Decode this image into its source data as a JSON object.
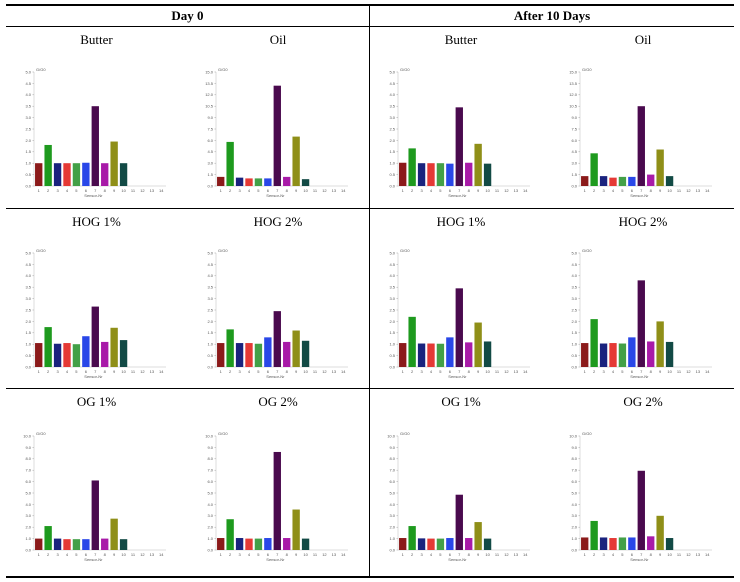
{
  "headers": [
    "Day 0",
    "After 10 Days"
  ],
  "row_labels": [
    [
      "Butter",
      "Oil",
      "Butter",
      "Oil"
    ],
    [
      "HOG 1%",
      "HOG 2%",
      "HOG 1%",
      "HOG 2%"
    ],
    [
      "OG 1%",
      "OG 2%",
      "OG 1%",
      "OG 2%"
    ]
  ],
  "colors": [
    "#8b1a1a",
    "#1e9a1e",
    "#1a237e",
    "#e53935",
    "#43a047",
    "#2947e8",
    "#4a0a4e",
    "#a81aa8",
    "#8f8f18",
    "#124a45",
    "#888888",
    "#888888",
    "#888888",
    "#888888"
  ],
  "chart_data": [
    {
      "type": "bar",
      "panel": "Day 0 / Butter",
      "ylabel": "G/G0",
      "xlabel": "Sensor-Nr",
      "categories": [
        "1",
        "2",
        "3",
        "4",
        "5",
        "6",
        "7",
        "8",
        "9",
        "10",
        "11",
        "12",
        "13",
        "14"
      ],
      "yticks": [
        "0.0",
        "0.5",
        "1.0",
        "1.5",
        "2.0",
        "2.5",
        "3.0",
        "3.5",
        "4.0",
        "4.5",
        "5.0"
      ],
      "ylim": [
        0,
        5
      ],
      "values": [
        1.0,
        1.8,
        1.0,
        1.0,
        1.0,
        1.02,
        3.5,
        1.0,
        1.95,
        1.0,
        0,
        0,
        0,
        0
      ]
    },
    {
      "type": "bar",
      "panel": "Day 0 / Oil",
      "ylabel": "G/G0",
      "xlabel": "Sensor-Nr",
      "categories": [
        "1",
        "2",
        "3",
        "4",
        "5",
        "6",
        "7",
        "8",
        "9",
        "10",
        "11",
        "12",
        "13",
        "14"
      ],
      "yticks": [
        "0.0",
        "1.5",
        "3.0",
        "4.5",
        "6.0",
        "7.5",
        "9.0",
        "10.5",
        "12.0",
        "13.5",
        "15.0"
      ],
      "ylim": [
        0,
        15
      ],
      "values": [
        1.2,
        5.8,
        1.1,
        1.0,
        1.0,
        1.0,
        13.2,
        1.2,
        6.5,
        0.9,
        0,
        0,
        0,
        0
      ]
    },
    {
      "type": "bar",
      "panel": "After 10 Days / Butter",
      "ylabel": "G/G0",
      "xlabel": "Sensor-Nr",
      "categories": [
        "1",
        "2",
        "3",
        "4",
        "5",
        "6",
        "7",
        "8",
        "9",
        "10",
        "11",
        "12",
        "13",
        "14"
      ],
      "yticks": [
        "0.0",
        "0.5",
        "1.0",
        "1.5",
        "2.0",
        "2.5",
        "3.0",
        "3.5",
        "4.0",
        "4.5",
        "5.0"
      ],
      "ylim": [
        0,
        5
      ],
      "values": [
        1.02,
        1.65,
        1.0,
        1.0,
        1.0,
        0.98,
        3.45,
        1.02,
        1.85,
        0.98,
        0,
        0,
        0,
        0
      ]
    },
    {
      "type": "bar",
      "panel": "After 10 Days / Oil",
      "ylabel": "G/G0",
      "xlabel": "Sensor-Nr",
      "categories": [
        "1",
        "2",
        "3",
        "4",
        "5",
        "6",
        "7",
        "8",
        "9",
        "10",
        "11",
        "12",
        "13",
        "14"
      ],
      "yticks": [
        "0.0",
        "1.5",
        "3.0",
        "4.5",
        "6.0",
        "7.5",
        "9.0",
        "10.5",
        "12.0",
        "13.5",
        "15.0"
      ],
      "ylim": [
        0,
        15
      ],
      "values": [
        1.3,
        4.3,
        1.3,
        1.1,
        1.2,
        1.2,
        10.5,
        1.5,
        4.8,
        1.3,
        0,
        0,
        0,
        0
      ]
    },
    {
      "type": "bar",
      "panel": "Day 0 / HOG 1%",
      "ylabel": "G/G0",
      "xlabel": "Sensor-Nr",
      "categories": [
        "1",
        "2",
        "3",
        "4",
        "5",
        "6",
        "7",
        "8",
        "9",
        "10",
        "11",
        "12",
        "13",
        "14"
      ],
      "yticks": [
        "0.0",
        "0.5",
        "1.0",
        "1.5",
        "2.0",
        "2.5",
        "3.0",
        "3.5",
        "4.0",
        "4.5",
        "5.0"
      ],
      "ylim": [
        0,
        5
      ],
      "values": [
        1.05,
        1.75,
        1.02,
        1.05,
        1.0,
        1.35,
        2.65,
        1.1,
        1.72,
        1.18,
        0,
        0,
        0,
        0
      ]
    },
    {
      "type": "bar",
      "panel": "Day 0 / HOG 2%",
      "ylabel": "G/G0",
      "xlabel": "Sensor-Nr",
      "categories": [
        "1",
        "2",
        "3",
        "4",
        "5",
        "6",
        "7",
        "8",
        "9",
        "10",
        "11",
        "12",
        "13",
        "14"
      ],
      "yticks": [
        "0.0",
        "0.5",
        "1.0",
        "1.5",
        "2.0",
        "2.5",
        "3.0",
        "3.5",
        "4.0",
        "4.5",
        "5.0"
      ],
      "ylim": [
        0,
        5
      ],
      "values": [
        1.05,
        1.65,
        1.05,
        1.05,
        1.02,
        1.3,
        2.45,
        1.1,
        1.6,
        1.15,
        0,
        0,
        0,
        0
      ]
    },
    {
      "type": "bar",
      "panel": "After 10 Days / HOG 1%",
      "ylabel": "G/G0",
      "xlabel": "Sensor-Nr",
      "categories": [
        "1",
        "2",
        "3",
        "4",
        "5",
        "6",
        "7",
        "8",
        "9",
        "10",
        "11",
        "12",
        "13",
        "14"
      ],
      "yticks": [
        "0.0",
        "0.5",
        "1.0",
        "1.5",
        "2.0",
        "2.5",
        "3.0",
        "3.5",
        "4.0",
        "4.5",
        "5.0"
      ],
      "ylim": [
        0,
        5
      ],
      "values": [
        1.05,
        2.2,
        1.03,
        1.03,
        1.02,
        1.3,
        3.45,
        1.08,
        1.95,
        1.12,
        0,
        0,
        0,
        0
      ]
    },
    {
      "type": "bar",
      "panel": "After 10 Days / HOG 2%",
      "ylabel": "G/G0",
      "xlabel": "Sensor-Nr",
      "categories": [
        "1",
        "2",
        "3",
        "4",
        "5",
        "6",
        "7",
        "8",
        "9",
        "10",
        "11",
        "12",
        "13",
        "14"
      ],
      "yticks": [
        "0.0",
        "0.5",
        "1.0",
        "1.5",
        "2.0",
        "2.5",
        "3.0",
        "3.5",
        "4.0",
        "4.5",
        "5.0"
      ],
      "ylim": [
        0,
        5
      ],
      "values": [
        1.05,
        2.1,
        1.03,
        1.05,
        1.03,
        1.3,
        3.8,
        1.12,
        2.0,
        1.1,
        0,
        0,
        0,
        0
      ]
    },
    {
      "type": "bar",
      "panel": "Day 0 / OG 1%",
      "ylabel": "G/G0",
      "xlabel": "Sensor-Nr",
      "categories": [
        "1",
        "2",
        "3",
        "4",
        "5",
        "6",
        "7",
        "8",
        "9",
        "10",
        "11",
        "12",
        "13",
        "14"
      ],
      "yticks": [
        "0.0",
        "1.0",
        "2.0",
        "3.0",
        "4.0",
        "5.0",
        "6.0",
        "7.0",
        "8.0",
        "9.0",
        "10.0"
      ],
      "ylim": [
        0,
        10
      ],
      "values": [
        1.0,
        2.1,
        1.0,
        0.95,
        0.95,
        0.95,
        6.1,
        1.0,
        2.75,
        0.95,
        0,
        0,
        0,
        0
      ]
    },
    {
      "type": "bar",
      "panel": "Day 0 / OG 2%",
      "ylabel": "G/G0",
      "xlabel": "Sensor-Nr",
      "categories": [
        "1",
        "2",
        "3",
        "4",
        "5",
        "6",
        "7",
        "8",
        "9",
        "10",
        "11",
        "12",
        "13",
        "14"
      ],
      "yticks": [
        "0.0",
        "1.0",
        "2.0",
        "3.0",
        "4.0",
        "5.0",
        "6.0",
        "7.0",
        "8.0",
        "9.0",
        "10.0"
      ],
      "ylim": [
        0,
        10
      ],
      "values": [
        1.05,
        2.7,
        1.05,
        1.0,
        1.0,
        1.05,
        8.6,
        1.05,
        3.55,
        1.0,
        0,
        0,
        0,
        0
      ]
    },
    {
      "type": "bar",
      "panel": "After 10 Days / OG 1%",
      "ylabel": "G/G0",
      "xlabel": "Sensor-Nr",
      "categories": [
        "1",
        "2",
        "3",
        "4",
        "5",
        "6",
        "7",
        "8",
        "9",
        "10",
        "11",
        "12",
        "13",
        "14"
      ],
      "yticks": [
        "0.0",
        "1.0",
        "2.0",
        "3.0",
        "4.0",
        "5.0",
        "6.0",
        "7.0",
        "8.0",
        "9.0",
        "10.0"
      ],
      "ylim": [
        0,
        10
      ],
      "values": [
        1.05,
        2.1,
        1.02,
        1.0,
        1.0,
        1.05,
        4.85,
        1.05,
        2.45,
        1.0,
        0,
        0,
        0,
        0
      ]
    },
    {
      "type": "bar",
      "panel": "After 10 Days / OG 2%",
      "ylabel": "G/G0",
      "xlabel": "Sensor-Nr",
      "categories": [
        "1",
        "2",
        "3",
        "4",
        "5",
        "6",
        "7",
        "8",
        "9",
        "10",
        "11",
        "12",
        "13",
        "14"
      ],
      "yticks": [
        "0.0",
        "1.0",
        "2.0",
        "3.0",
        "4.0",
        "5.0",
        "6.0",
        "7.0",
        "8.0",
        "9.0",
        "10.0"
      ],
      "ylim": [
        0,
        10
      ],
      "values": [
        1.1,
        2.55,
        1.1,
        1.05,
        1.1,
        1.1,
        6.95,
        1.2,
        3.0,
        1.05,
        0,
        0,
        0,
        0
      ]
    }
  ]
}
